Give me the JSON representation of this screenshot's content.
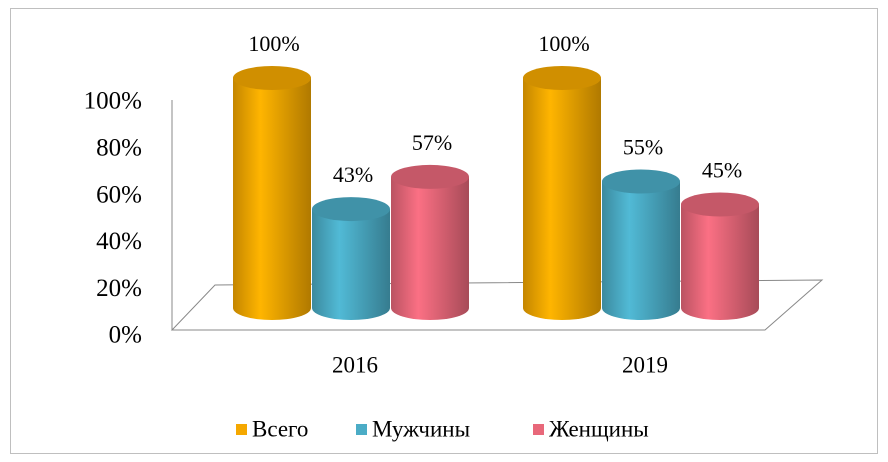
{
  "chart_data": {
    "type": "bar",
    "categories": [
      "2016",
      "2019"
    ],
    "series": [
      {
        "name": "Всего",
        "color": "#f5a800",
        "values": [
          100,
          100
        ],
        "value_labels": [
          "100%",
          "100%"
        ]
      },
      {
        "name": "Мужчины",
        "color": "#4bacc6",
        "values": [
          43,
          55
        ],
        "value_labels": [
          "43%",
          "55%"
        ]
      },
      {
        "name": "Женщины",
        "color": "#e8687a",
        "values": [
          57,
          45
        ],
        "value_labels": [
          "57%",
          "45%"
        ]
      }
    ],
    "ylim": [
      0,
      100
    ],
    "yticks": [
      {
        "value": 0,
        "label": "0%"
      },
      {
        "value": 20,
        "label": "20%"
      },
      {
        "value": 40,
        "label": "40%"
      },
      {
        "value": 60,
        "label": "60%"
      },
      {
        "value": 80,
        "label": "80%"
      },
      {
        "value": 100,
        "label": "100%"
      }
    ],
    "legend": "bottom"
  }
}
